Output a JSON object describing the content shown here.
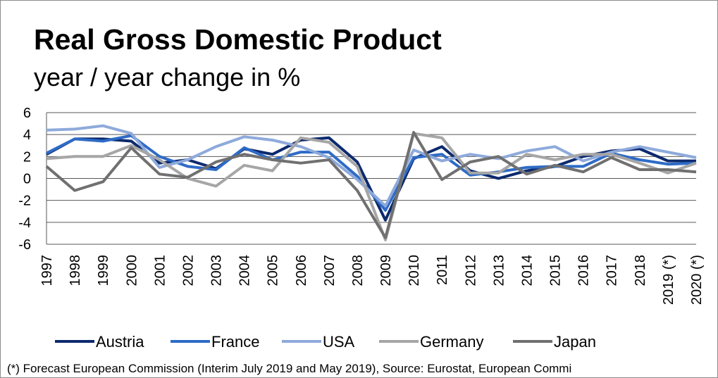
{
  "chart_data": {
    "type": "line",
    "title": "Real Gross Domestic Product",
    "subtitle": "year / year change in %",
    "footnote": "(*) Forecast European Commission (Interim July 2019 and May 2019), Source: Eurostat, European Commi",
    "categories": [
      "1997",
      "1998",
      "1999",
      "2000",
      "2001",
      "2002",
      "2003",
      "2004",
      "2005",
      "2006",
      "2007",
      "2008",
      "2009",
      "2010",
      "2011",
      "2012",
      "2013",
      "2014",
      "2015",
      "2016",
      "2017",
      "2018",
      "2019 (*)",
      "2020 (*)"
    ],
    "ylim": [
      -6,
      6
    ],
    "yticks": [
      -6,
      -4,
      -2,
      0,
      2,
      4,
      6
    ],
    "grid": true,
    "legend": "bottom",
    "series": [
      {
        "name": "Austria",
        "color": "#0d2a6e",
        "values": [
          2.2,
          3.6,
          3.6,
          3.4,
          1.4,
          1.7,
          0.9,
          2.7,
          2.2,
          3.5,
          3.7,
          1.5,
          -3.8,
          1.8,
          2.9,
          0.7,
          0.0,
          0.7,
          1.1,
          2.0,
          2.5,
          2.7,
          1.6,
          1.6
        ]
      },
      {
        "name": "France",
        "color": "#2e6bc6",
        "values": [
          2.3,
          3.6,
          3.4,
          3.9,
          2.0,
          1.1,
          0.8,
          2.8,
          1.7,
          2.4,
          2.4,
          0.2,
          -2.9,
          1.9,
          2.2,
          0.3,
          0.6,
          1.0,
          1.1,
          1.1,
          2.3,
          1.7,
          1.3,
          1.4
        ]
      },
      {
        "name": "USA",
        "color": "#8eaadb",
        "values": [
          4.4,
          4.5,
          4.8,
          4.1,
          1.0,
          1.7,
          2.9,
          3.8,
          3.5,
          2.9,
          1.9,
          -0.1,
          -2.5,
          2.6,
          1.6,
          2.2,
          1.8,
          2.5,
          2.9,
          1.6,
          2.4,
          2.9,
          2.4,
          1.9
        ]
      },
      {
        "name": "Germany",
        "color": "#a6a6a6",
        "values": [
          1.8,
          2.0,
          2.0,
          3.0,
          1.7,
          0.0,
          -0.7,
          1.2,
          0.7,
          3.7,
          3.3,
          1.1,
          -5.6,
          4.1,
          3.7,
          0.5,
          0.5,
          2.2,
          1.7,
          2.2,
          2.2,
          1.4,
          0.5,
          1.4
        ]
      },
      {
        "name": "Japan",
        "color": "#707070",
        "values": [
          1.1,
          -1.1,
          -0.3,
          2.8,
          0.4,
          0.1,
          1.5,
          2.2,
          1.7,
          1.4,
          1.7,
          -1.1,
          -5.4,
          4.2,
          -0.1,
          1.5,
          2.0,
          0.4,
          1.2,
          0.6,
          1.9,
          0.8,
          0.8,
          0.6
        ]
      }
    ]
  }
}
